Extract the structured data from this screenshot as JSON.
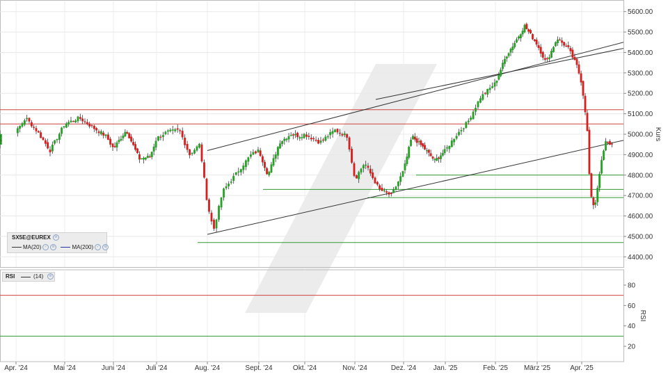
{
  "chart_data": [
    {
      "type": "candlestick",
      "symbol": "SX5E@EUREX",
      "ylabel": "Kurs",
      "ylim": [
        4350,
        5650
      ],
      "y_ticks": [
        "5600.00",
        "5500.00",
        "5400.00",
        "5300.00",
        "5200.00",
        "5100.00",
        "5000.00",
        "4900.00",
        "4800.00",
        "4700.00",
        "4600.00",
        "4500.00",
        "4400.00"
      ],
      "x_ticks": [
        "Apr. '24",
        "Mai '24",
        "Juni '24",
        "Juli '24",
        "Aug. '24",
        "Sept. '24",
        "Okt. '24",
        "Nov. '24",
        "Dez. '24",
        "Jan. '25",
        "Feb. '25",
        "März '25",
        "Apr. '25"
      ],
      "legend": [
        {
          "label": "MA(20)",
          "color": "#333333"
        },
        {
          "label": "MA(200)",
          "color": "#2233aa"
        }
      ],
      "colors": {
        "up": "#27a227",
        "down": "#d62020",
        "ma20": "#333333",
        "ma200": "#2233aa",
        "resistance": "#d04040",
        "support": "#2e9a2e",
        "channel": "#333333"
      },
      "key_points": [
        {
          "date": "Apr. '24",
          "close": 5000
        },
        {
          "date": "Mai '24",
          "close": 5050
        },
        {
          "date": "Juni '24",
          "close": 4950
        },
        {
          "date": "Juli '24",
          "close": 5000
        },
        {
          "date": "Aug. '24",
          "close": 4510
        },
        {
          "date": "Sept. '24",
          "close": 4910
        },
        {
          "date": "Okt. '24",
          "close": 5000
        },
        {
          "date": "Nov. '24",
          "close": 4780
        },
        {
          "date": "Dez. '24",
          "close": 4920
        },
        {
          "date": "Jan. '25",
          "close": 5050
        },
        {
          "date": "Feb. '25",
          "close": 5460
        },
        {
          "date": "März '25",
          "close": 5420
        },
        {
          "date": "Apr. '25",
          "close": 4950
        }
      ],
      "horizontal_lines": [
        {
          "type": "resistance",
          "value": 5120
        },
        {
          "type": "resistance",
          "value": 5050
        },
        {
          "type": "support",
          "value": 4800
        },
        {
          "type": "support",
          "value": 4730
        },
        {
          "type": "support",
          "value": 4690
        },
        {
          "type": "support",
          "value": 4470
        }
      ],
      "grid": true
    },
    {
      "type": "line",
      "name": "RSI",
      "period_label": "(14)",
      "ylabel": "RSI",
      "ylim": [
        5,
        95
      ],
      "y_ticks": [
        "80",
        "60",
        "40",
        "20"
      ],
      "levels": [
        70,
        30
      ],
      "colors": {
        "line": "#333333",
        "levels": [
          "#d04040",
          "#2e9a2e"
        ]
      }
    }
  ]
}
